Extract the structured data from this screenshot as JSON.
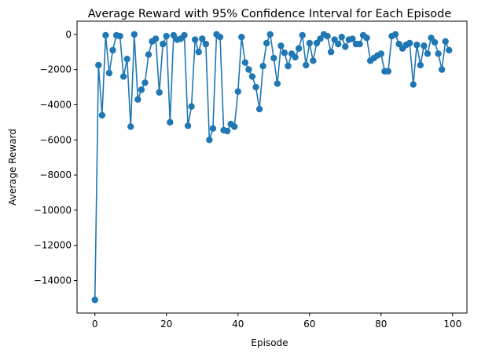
{
  "chart_data": {
    "type": "line",
    "title": "Average Reward with 95% Confidence Interval for Each Episode",
    "xlabel": "Episode",
    "ylabel": "Average Reward",
    "xlim": [
      -5,
      104
    ],
    "ylim": [
      -15850,
      750
    ],
    "xticks": [
      0,
      20,
      40,
      60,
      80,
      100
    ],
    "yticks": [
      -14000,
      -12000,
      -10000,
      -8000,
      -6000,
      -4000,
      -2000,
      0
    ],
    "grid": false,
    "legend": "none",
    "marker": "circle",
    "colors": {
      "series": "#1f77b4",
      "axes": "#000000",
      "background": "#ffffff"
    },
    "series": [
      {
        "x": [
          0,
          1,
          2,
          3,
          4,
          5,
          6,
          7,
          8,
          9,
          10,
          11,
          12,
          13,
          14,
          15,
          16,
          17,
          18,
          19,
          20,
          21,
          22,
          23,
          24,
          25,
          26,
          27,
          28,
          29,
          30,
          31,
          32,
          33,
          34,
          35,
          36,
          37,
          38,
          39,
          40,
          41,
          42,
          43,
          44,
          45,
          46,
          47,
          48,
          49,
          50,
          51,
          52,
          53,
          54,
          55,
          56,
          57,
          58,
          59,
          60,
          61,
          62,
          63,
          64,
          65,
          66,
          67,
          68,
          69,
          70,
          71,
          72,
          73,
          74,
          75,
          76,
          77,
          78,
          79,
          80,
          81,
          82,
          83,
          84,
          85,
          86,
          87,
          88,
          89,
          90,
          91,
          92,
          93,
          94,
          95,
          96,
          97,
          98,
          99
        ],
        "values": [
          -15100,
          -1750,
          -4600,
          -50,
          -2200,
          -900,
          -50,
          -100,
          -2400,
          -1400,
          -5250,
          0,
          -3700,
          -3150,
          -2750,
          -1150,
          -400,
          -250,
          -3300,
          -550,
          -100,
          -5000,
          -50,
          -300,
          -250,
          -50,
          -5200,
          -4100,
          -300,
          -1000,
          -250,
          -550,
          -6000,
          -5350,
          0,
          -150,
          -5450,
          -5500,
          -5100,
          -5250,
          -3250,
          -150,
          -1600,
          -2000,
          -2400,
          -3000,
          -4250,
          -1800,
          -500,
          0,
          -1350,
          -2800,
          -650,
          -1050,
          -1800,
          -1100,
          -1300,
          -800,
          -50,
          -1750,
          -500,
          -1500,
          -500,
          -250,
          0,
          -100,
          -1000,
          -300,
          -550,
          -150,
          -700,
          -300,
          -250,
          -550,
          -550,
          -50,
          -200,
          -1500,
          -1350,
          -1200,
          -1100,
          -2100,
          -2100,
          -100,
          0,
          -550,
          -800,
          -600,
          -500,
          -2850,
          -600,
          -1750,
          -650,
          -1100,
          -200,
          -450,
          -1100,
          -2000,
          -400,
          -900
        ]
      }
    ]
  }
}
